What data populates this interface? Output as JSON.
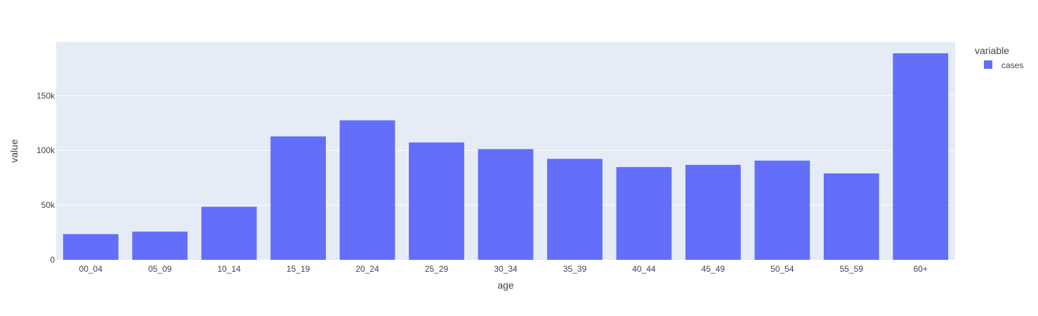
{
  "chart_data": {
    "type": "bar",
    "categories": [
      "00_04",
      "05_09",
      "10_14",
      "15_19",
      "20_24",
      "25_29",
      "30_34",
      "35_39",
      "40_44",
      "45_49",
      "50_54",
      "55_59",
      "60+"
    ],
    "series": [
      {
        "name": "cases",
        "values": [
          23500,
          25800,
          48500,
          112800,
          127500,
          107300,
          101200,
          92300,
          84800,
          86800,
          90700,
          79000,
          188800
        ]
      }
    ],
    "xlabel": "age",
    "ylabel": "value",
    "ylim": [
      0,
      199000
    ],
    "yticks": [
      0,
      50000,
      100000,
      150000
    ],
    "ytick_labels": [
      "0",
      "50k",
      "100k",
      "150k"
    ],
    "legend_title": "variable",
    "legend_position": "top-right",
    "grid": true,
    "colors": {
      "bar": "#636efa",
      "plot_bg": "#e5ecf6",
      "grid": "#ffffff",
      "text": "#444444"
    }
  }
}
